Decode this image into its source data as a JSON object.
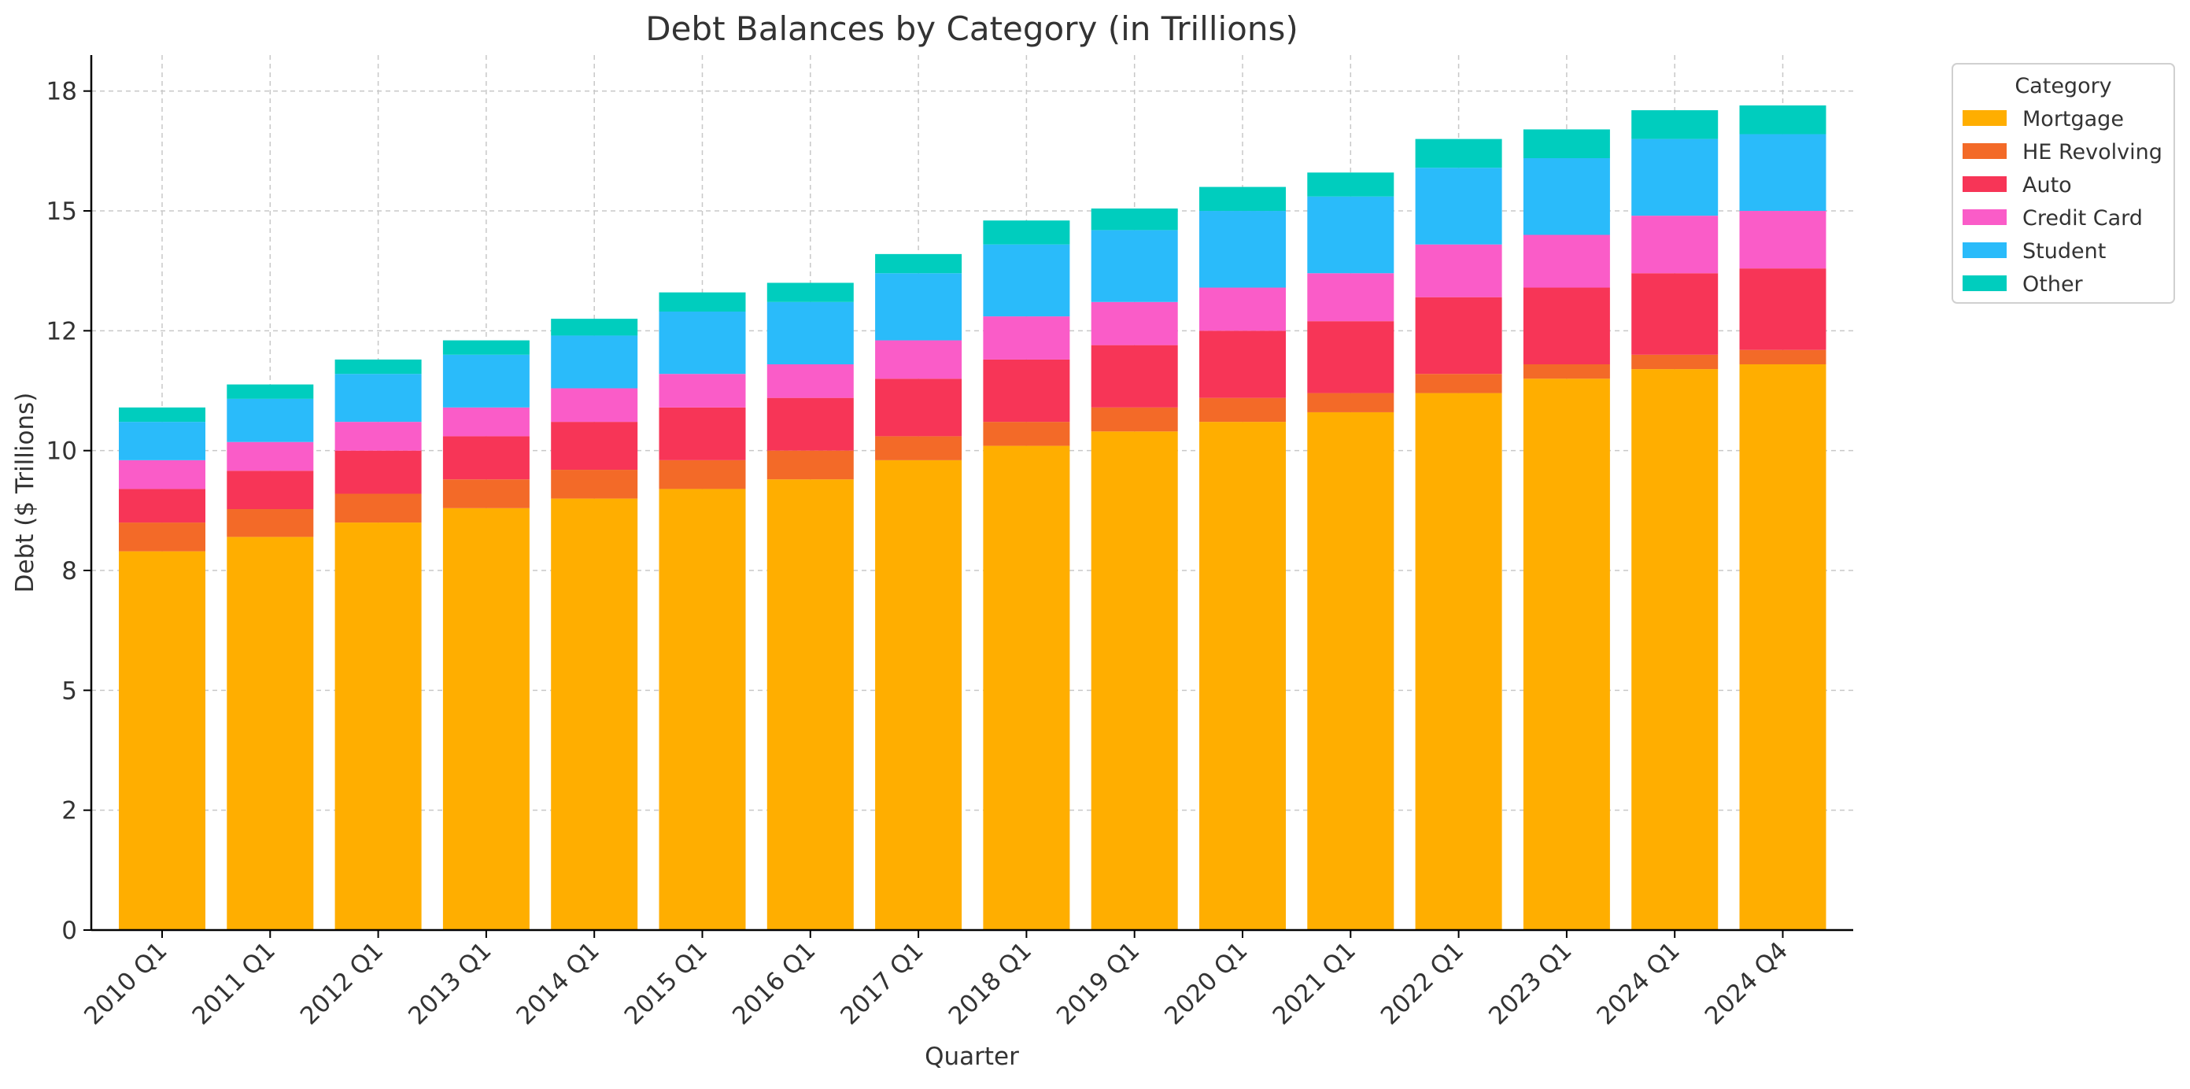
{
  "chart_data": {
    "type": "bar",
    "stacked": true,
    "title": "Debt Balances by Category (in Trillions)",
    "xlabel": "Quarter",
    "ylabel": "Debt ($ Trillions)",
    "ylim": [
      0,
      18.25
    ],
    "yticks": [
      0,
      2.5,
      5,
      7.5,
      10,
      12.5,
      15,
      17.5
    ],
    "ytick_labels": [
      "0",
      "2",
      "5",
      "8",
      "10",
      "12",
      "15",
      "18"
    ],
    "grid": true,
    "legend": {
      "title": "Category",
      "position": "outside-top-right"
    },
    "categories": [
      "2010 Q1",
      "2011 Q1",
      "2012 Q1",
      "2013 Q1",
      "2014 Q1",
      "2015 Q1",
      "2016 Q1",
      "2017 Q1",
      "2018 Q1",
      "2019 Q1",
      "2020 Q1",
      "2021 Q1",
      "2022 Q1",
      "2023 Q1",
      "2024 Q1",
      "2024 Q4"
    ],
    "series": [
      {
        "name": "Mortgage",
        "color": "#FFAE00",
        "values": [
          7.9,
          8.2,
          8.5,
          8.8,
          9.0,
          9.2,
          9.4,
          9.8,
          10.1,
          10.4,
          10.6,
          10.8,
          11.2,
          11.5,
          11.7,
          11.8
        ]
      },
      {
        "name": "HE Revolving",
        "color": "#F36A28",
        "values": [
          0.6,
          0.58,
          0.6,
          0.6,
          0.6,
          0.6,
          0.6,
          0.5,
          0.5,
          0.5,
          0.5,
          0.4,
          0.4,
          0.3,
          0.3,
          0.3
        ]
      },
      {
        "name": "Auto",
        "color": "#F73557",
        "values": [
          0.7,
          0.8,
          0.9,
          0.9,
          1.0,
          1.1,
          1.1,
          1.2,
          1.3,
          1.3,
          1.4,
          1.5,
          1.6,
          1.6,
          1.7,
          1.7
        ]
      },
      {
        "name": "Credit Card",
        "color": "#FA5CC8",
        "values": [
          0.6,
          0.6,
          0.6,
          0.6,
          0.7,
          0.7,
          0.7,
          0.8,
          0.9,
          0.9,
          0.9,
          1.0,
          1.1,
          1.1,
          1.2,
          1.2
        ]
      },
      {
        "name": "Student",
        "color": "#2ABBFA",
        "values": [
          0.8,
          0.9,
          1.0,
          1.1,
          1.1,
          1.3,
          1.3,
          1.4,
          1.5,
          1.5,
          1.6,
          1.6,
          1.6,
          1.6,
          1.6,
          1.6
        ]
      },
      {
        "name": "Other",
        "color": "#00CDBE",
        "values": [
          0.3,
          0.3,
          0.3,
          0.3,
          0.35,
          0.4,
          0.4,
          0.4,
          0.5,
          0.45,
          0.5,
          0.5,
          0.6,
          0.6,
          0.6,
          0.6
        ]
      }
    ]
  }
}
